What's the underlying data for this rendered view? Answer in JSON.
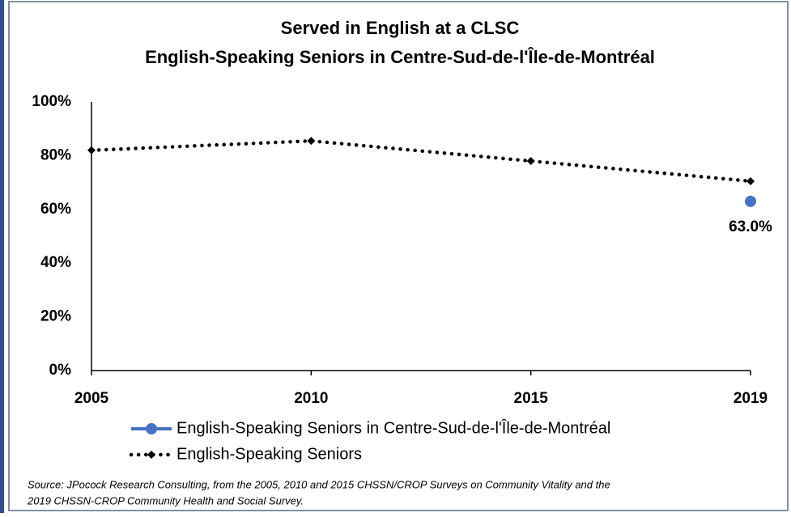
{
  "chart_data": {
    "type": "line",
    "title": "Served in English at a CLSC",
    "subtitle": "English-Speaking Seniors in Centre-Sud-de-l'Île-de-Montréal",
    "categories": [
      "2005",
      "2010",
      "2015",
      "2019"
    ],
    "series": [
      {
        "name": "English-Speaking Seniors in Centre-Sud-de-l'Île-de-Montréal",
        "color": "#4472c4",
        "marker": "circle",
        "line": "solid",
        "values": [
          null,
          null,
          null,
          63
        ],
        "value_labels": [
          null,
          null,
          null,
          "63.0%"
        ]
      },
      {
        "name": "English-Speaking Seniors",
        "color": "#000000",
        "marker": "diamond",
        "line": "dotted",
        "values": [
          82,
          85.5,
          78,
          70.5
        ]
      }
    ],
    "ylim": [
      0,
      100
    ],
    "yticks": [
      {
        "value": 0,
        "label": "0%"
      },
      {
        "value": 20,
        "label": "20%"
      },
      {
        "value": 40,
        "label": "40%"
      },
      {
        "value": 60,
        "label": "60%"
      },
      {
        "value": 80,
        "label": "80%"
      },
      {
        "value": 100,
        "label": "100%"
      }
    ],
    "grid": false,
    "source": [
      "Source: JPocock Research Consulting, from the 2005, 2010  and 2015  CHSSN/CROP Surveys on Community Vitality and the",
      "2019  CHSSN-CROP Community Health and Social Survey."
    ]
  }
}
